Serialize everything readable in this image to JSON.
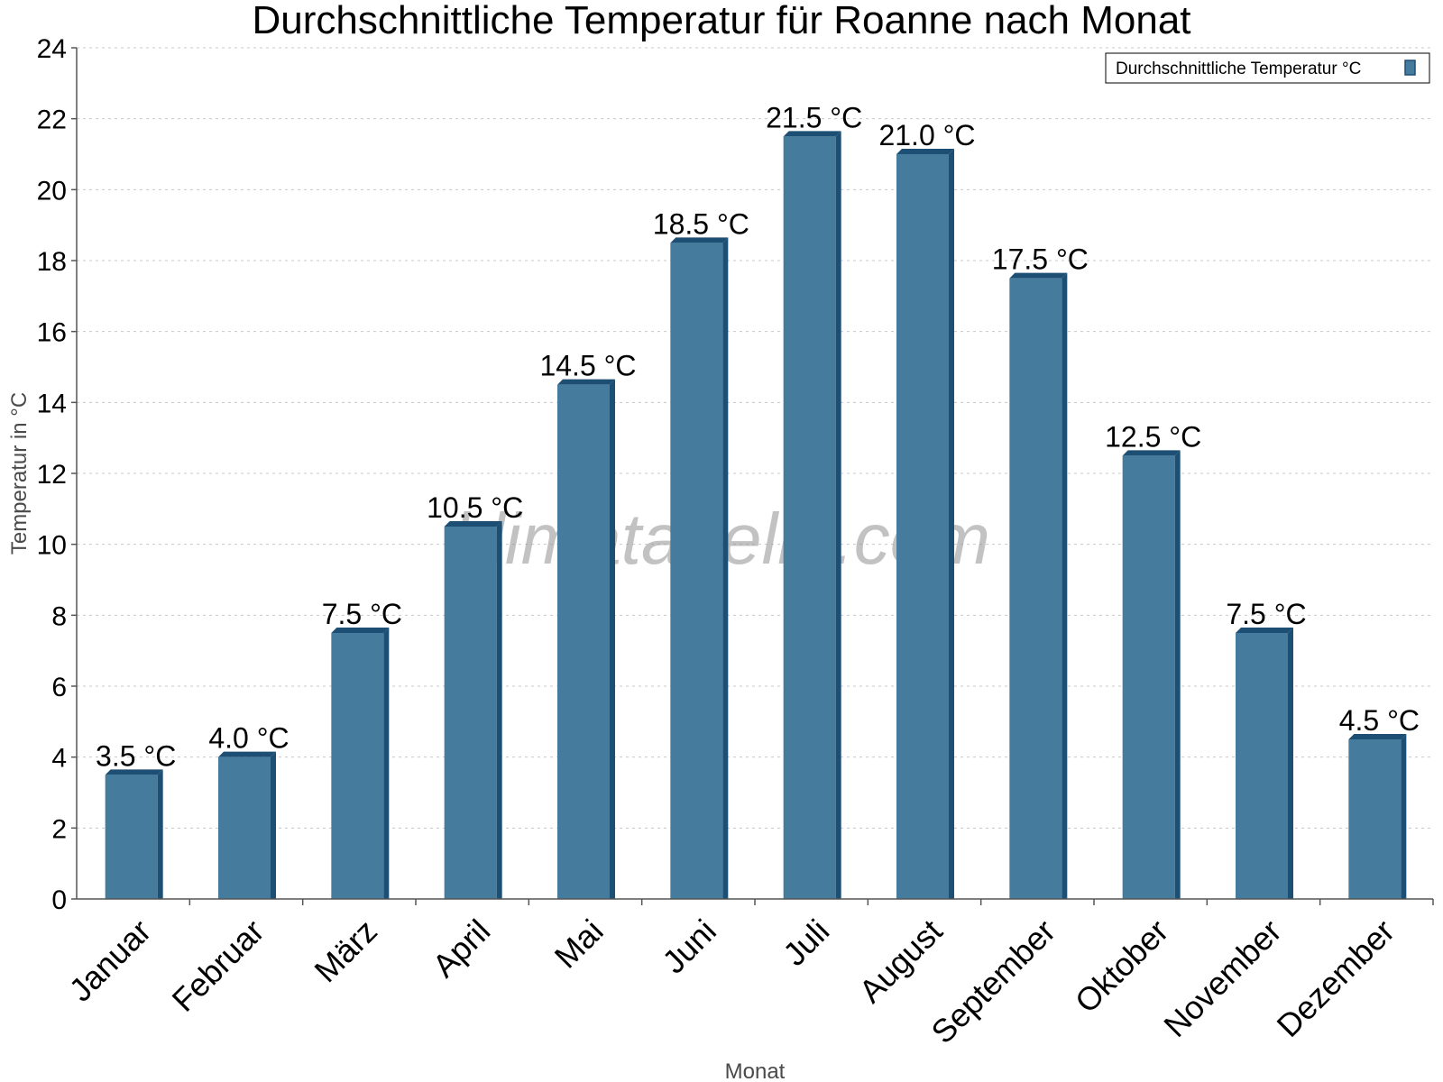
{
  "chart_data": {
    "type": "bar",
    "title": "Durchschnittliche Temperatur für Roanne nach Monat",
    "xlabel": "Monat",
    "ylabel": "Temperatur in °C",
    "ylim": [
      0,
      24
    ],
    "yticks": [
      0,
      2,
      4,
      6,
      8,
      10,
      12,
      14,
      16,
      18,
      20,
      22,
      24
    ],
    "grid": true,
    "legend_position": "top-right",
    "categories": [
      "Januar",
      "Februar",
      "März",
      "April",
      "Mai",
      "Juni",
      "Juli",
      "August",
      "September",
      "Oktober",
      "November",
      "Dezember"
    ],
    "series": [
      {
        "name": "Durchschnittliche Temperatur °C",
        "color": "#457b9d",
        "shade": "#1d4e73",
        "values": [
          3.5,
          4.0,
          7.5,
          10.5,
          14.5,
          18.5,
          21.5,
          21.0,
          17.5,
          12.5,
          7.5,
          4.5
        ],
        "labels": [
          "3.5 °C",
          "4.0 °C",
          "7.5 °C",
          "10.5 °C",
          "14.5 °C",
          "18.5 °C",
          "21.5 °C",
          "21.0 °C",
          "17.5 °C",
          "12.5 °C",
          "7.5 °C",
          "4.5 °C"
        ]
      }
    ]
  },
  "watermark": "klimatabelle.com"
}
